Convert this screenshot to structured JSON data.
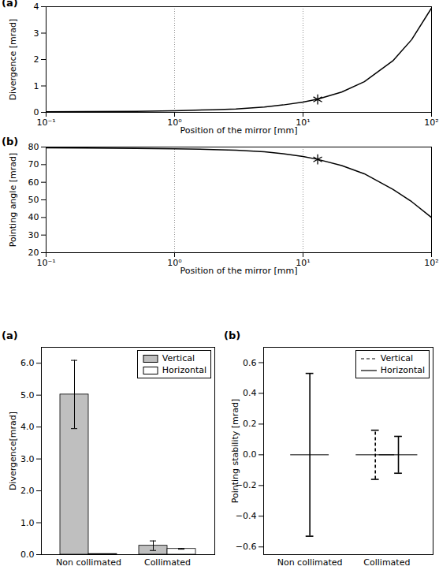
{
  "chart_data": [
    {
      "type": "line",
      "title": "(a)",
      "x_label": "Position of the mirror [mm]",
      "y_label": "Divergence [mrad]",
      "log": "x",
      "grid": "x",
      "xlim": [
        0.1,
        100
      ],
      "xticks": [
        {
          "value": 0.1,
          "label": "10⁻¹"
        },
        {
          "value": 1,
          "label": "10⁰"
        },
        {
          "value": 10,
          "label": "10¹"
        },
        {
          "value": 100,
          "label": "10²"
        }
      ],
      "ylim": [
        0,
        4
      ],
      "yticks": [
        0,
        1,
        2,
        3,
        4
      ],
      "series": [
        {
          "type": "line",
          "color": "#000000",
          "x": [
            0.1,
            0.2,
            0.5,
            1,
            2,
            3,
            5,
            7,
            10,
            13,
            20,
            30,
            50,
            70,
            100
          ],
          "values": [
            0.02,
            0.03,
            0.04,
            0.06,
            0.1,
            0.13,
            0.2,
            0.28,
            0.39,
            0.5,
            0.77,
            1.16,
            1.95,
            2.75,
            3.95
          ]
        },
        {
          "type": "scatter",
          "marker": "asterisk",
          "color": "#000000",
          "x": [
            13
          ],
          "values": [
            0.49
          ]
        }
      ]
    },
    {
      "type": "line",
      "title": "(b)",
      "x_label": "Position of the mirror [mm]",
      "y_label": "Pointing angle [mrad]",
      "log": "x",
      "grid": "x",
      "xlim": [
        0.1,
        100
      ],
      "xticks": [
        {
          "value": 0.1,
          "label": "10⁻¹"
        },
        {
          "value": 1,
          "label": "10⁰"
        },
        {
          "value": 10,
          "label": "10¹"
        },
        {
          "value": 100,
          "label": "10²"
        }
      ],
      "ylim": [
        20,
        80
      ],
      "yticks": [
        20,
        30,
        40,
        50,
        60,
        70,
        80
      ],
      "series": [
        {
          "type": "line",
          "color": "#000000",
          "x": [
            0.1,
            0.2,
            0.5,
            1,
            2,
            3,
            5,
            7,
            10,
            13,
            20,
            30,
            50,
            70,
            100
          ],
          "values": [
            79.5,
            79.4,
            79.2,
            79,
            78.6,
            78.2,
            77.3,
            76.2,
            74.6,
            73,
            69.5,
            64.8,
            56,
            49,
            40
          ]
        },
        {
          "type": "scatter",
          "marker": "asterisk",
          "color": "#000000",
          "x": [
            13
          ],
          "values": [
            73
          ]
        }
      ]
    },
    {
      "type": "bar",
      "title": "(a)",
      "y_label": "Divergence[mrad]",
      "categories": [
        "Non collimated",
        "Collimated"
      ],
      "ylim": [
        0,
        6.5
      ],
      "yticks": [
        {
          "value": 0,
          "label": "0.0"
        },
        {
          "value": 1,
          "label": "1.0"
        },
        {
          "value": 2,
          "label": "2.0"
        },
        {
          "value": 3,
          "label": "3.0"
        },
        {
          "value": 4,
          "label": "4.0"
        },
        {
          "value": 5,
          "label": "5.0"
        },
        {
          "value": 6,
          "label": "6.0"
        }
      ],
      "legend": "upper right",
      "series": [
        {
          "name": "Vertical",
          "color": "#bfbfbf",
          "values": [
            5.02,
            0.28
          ],
          "errors": [
            1.07,
            0.15
          ]
        },
        {
          "name": "Horizontal",
          "color": "#ffffff",
          "values": [
            0.02,
            0.18
          ],
          "errors": [
            0,
            0.01
          ]
        }
      ]
    },
    {
      "type": "errorbar",
      "title": "(b)",
      "y_label": "Pointing stability [mrad]",
      "categories": [
        "Non collimated",
        "Collimated"
      ],
      "ylim": [
        -0.65,
        0.7
      ],
      "yticks": [
        {
          "value": -0.6,
          "label": "−0.6"
        },
        {
          "value": -0.4,
          "label": "−0.4"
        },
        {
          "value": -0.2,
          "label": "−0.2"
        },
        {
          "value": 0,
          "label": "0.0"
        },
        {
          "value": 0.2,
          "label": "0.2"
        },
        {
          "value": 0.4,
          "label": "0.4"
        },
        {
          "value": 0.6,
          "label": "0.6"
        }
      ],
      "legend": "upper right",
      "series": [
        {
          "name": "Vertical",
          "color": "#000000",
          "line_style": "dashed",
          "values": [
            null,
            0
          ],
          "errors": [
            null,
            0.16
          ]
        },
        {
          "name": "Horizontal",
          "color": "#000000",
          "line_style": "solid",
          "values": [
            0,
            0
          ],
          "errors": [
            0.53,
            0.12
          ]
        }
      ]
    }
  ]
}
